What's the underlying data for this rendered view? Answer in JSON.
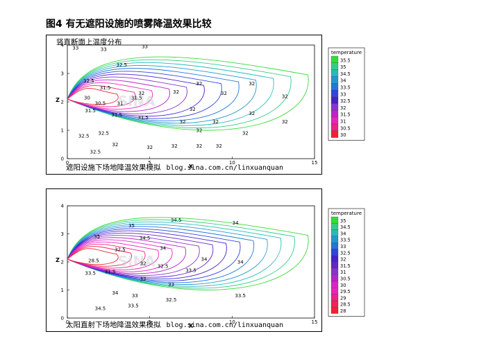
{
  "figure_title": "图4 有无遮阳设施的喷雾降温效果比较",
  "watermark": "SINA",
  "chart_data": [
    {
      "type": "contour",
      "title": "竖直断面上温度分布",
      "caption": "遮阳设施下场地降温效果模拟",
      "caption_url": "blog.sina.com.cn/linxuanquan",
      "xlabel": "X",
      "ylabel": "Z",
      "xlim": [
        0,
        15
      ],
      "ylim": [
        0,
        4
      ],
      "xticks": [
        "0",
        "5",
        "10",
        "15"
      ],
      "yticks": [
        "0",
        "1",
        "2",
        "3",
        "4"
      ],
      "legend": {
        "title": "temperature",
        "levels": [
          "35.5",
          "35",
          "34.5",
          "34",
          "33.5",
          "33",
          "32.5",
          "32",
          "31.5",
          "31",
          "30.5",
          "30"
        ],
        "colors": [
          "#33dd33",
          "#33cc88",
          "#22bbbb",
          "#2299cc",
          "#2277dd",
          "#3344dd",
          "#4422cc",
          "#8833cc",
          "#bb22cc",
          "#ee22bb",
          "#ee2288",
          "#ee2233"
        ]
      },
      "contour_labels": [
        {
          "text": "33",
          "x": 0.5,
          "y": 3.9
        },
        {
          "text": "33",
          "x": 2.2,
          "y": 3.85
        },
        {
          "text": "33",
          "x": 4.7,
          "y": 3.95
        },
        {
          "text": "32.5",
          "x": 3.3,
          "y": 3.3
        },
        {
          "text": "32.5",
          "x": 1.3,
          "y": 2.75
        },
        {
          "text": "32",
          "x": 8.0,
          "y": 2.65
        },
        {
          "text": "32",
          "x": 9.5,
          "y": 2.3
        },
        {
          "text": "32",
          "x": 11.2,
          "y": 2.65
        },
        {
          "text": "32",
          "x": 13.2,
          "y": 2.2
        },
        {
          "text": "31.5",
          "x": 2.3,
          "y": 2.5
        },
        {
          "text": "32",
          "x": 4.5,
          "y": 2.3
        },
        {
          "text": "30",
          "x": 1.2,
          "y": 2.15
        },
        {
          "text": "30.5",
          "x": 2.0,
          "y": 1.95
        },
        {
          "text": "31",
          "x": 3.2,
          "y": 1.95
        },
        {
          "text": "31.5",
          "x": 4.2,
          "y": 2.15
        },
        {
          "text": "31.5",
          "x": 1.4,
          "y": 1.7
        },
        {
          "text": "31.5",
          "x": 3.0,
          "y": 1.55
        },
        {
          "text": "31.5",
          "x": 4.6,
          "y": 1.45
        },
        {
          "text": "32",
          "x": 6.6,
          "y": 2.35
        },
        {
          "text": "32",
          "x": 7.6,
          "y": 1.75
        },
        {
          "text": "32",
          "x": 11.2,
          "y": 1.6
        },
        {
          "text": "32",
          "x": 13.2,
          "y": 1.3
        },
        {
          "text": "32",
          "x": 7.0,
          "y": 1.3
        },
        {
          "text": "32",
          "x": 9.0,
          "y": 1.3
        },
        {
          "text": "32",
          "x": 8.0,
          "y": 1.0
        },
        {
          "text": "32",
          "x": 10.8,
          "y": 0.9
        },
        {
          "text": "32",
          "x": 6.5,
          "y": 0.45
        },
        {
          "text": "32",
          "x": 8.0,
          "y": 0.45
        },
        {
          "text": "32",
          "x": 9.2,
          "y": 0.45
        },
        {
          "text": "32.5",
          "x": 1.0,
          "y": 0.8
        },
        {
          "text": "32.5",
          "x": 2.2,
          "y": 0.9
        },
        {
          "text": "32",
          "x": 2.9,
          "y": 0.5
        },
        {
          "text": "32",
          "x": 5.0,
          "y": 0.4
        },
        {
          "text": "32.5",
          "x": 1.7,
          "y": 0.25
        }
      ]
    },
    {
      "type": "contour",
      "caption": "太阳直射下场地降温效果模拟",
      "caption_url": "blog.sina.com.cn/linxuanquan",
      "xlabel": "X",
      "ylabel": "Z",
      "xlim": [
        0,
        15
      ],
      "ylim": [
        0,
        4
      ],
      "xticks": [
        "0",
        "5",
        "10",
        "15"
      ],
      "yticks": [
        "0",
        "1",
        "2",
        "3",
        "4"
      ],
      "legend": {
        "title": "temperature",
        "levels": [
          "35",
          "34.5",
          "34",
          "33.5",
          "33",
          "32.5",
          "32",
          "31.5",
          "31",
          "30.5",
          "30",
          "29.5",
          "29",
          "28.5",
          "28"
        ],
        "colors": [
          "#33dd33",
          "#33cc88",
          "#22bbbb",
          "#2299cc",
          "#2277dd",
          "#3344dd",
          "#4422cc",
          "#6622cc",
          "#8833cc",
          "#bb22cc",
          "#dd22cc",
          "#ee22bb",
          "#ee2288",
          "#ee2255",
          "#ee2233"
        ]
      },
      "contour_labels": [
        {
          "text": "35",
          "x": 3.9,
          "y": 3.3
        },
        {
          "text": "34.5",
          "x": 6.6,
          "y": 3.5
        },
        {
          "text": "34",
          "x": 10.2,
          "y": 3.4
        },
        {
          "text": "35",
          "x": 1.8,
          "y": 2.9
        },
        {
          "text": "34.5",
          "x": 4.7,
          "y": 2.85
        },
        {
          "text": "34",
          "x": 5.8,
          "y": 2.5
        },
        {
          "text": "32.5",
          "x": 3.2,
          "y": 2.45
        },
        {
          "text": "34",
          "x": 8.3,
          "y": 2.1
        },
        {
          "text": "34",
          "x": 10.5,
          "y": 2.0
        },
        {
          "text": "28.5",
          "x": 1.6,
          "y": 2.05
        },
        {
          "text": "32",
          "x": 4.6,
          "y": 1.95
        },
        {
          "text": "32.5",
          "x": 5.8,
          "y": 1.85
        },
        {
          "text": "31.5",
          "x": 2.6,
          "y": 1.65
        },
        {
          "text": "33.5",
          "x": 1.4,
          "y": 1.6
        },
        {
          "text": "32",
          "x": 4.6,
          "y": 1.4
        },
        {
          "text": "33.5",
          "x": 7.5,
          "y": 1.7
        },
        {
          "text": "33",
          "x": 6.3,
          "y": 1.2
        },
        {
          "text": "34",
          "x": 2.9,
          "y": 0.9
        },
        {
          "text": "33",
          "x": 4.1,
          "y": 0.8
        },
        {
          "text": "32.5",
          "x": 6.3,
          "y": 0.65
        },
        {
          "text": "33.5",
          "x": 10.5,
          "y": 0.8
        },
        {
          "text": "33.5",
          "x": 4.0,
          "y": 0.45
        },
        {
          "text": "34.5",
          "x": 2.0,
          "y": 0.35
        }
      ]
    }
  ]
}
